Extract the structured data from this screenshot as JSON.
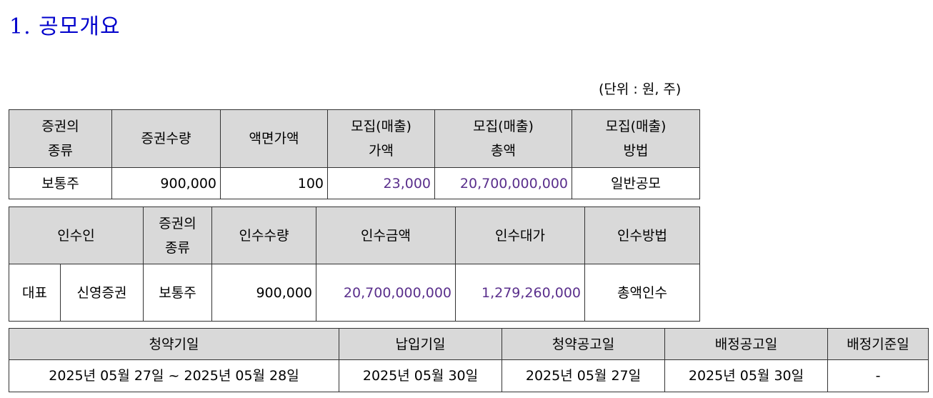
{
  "section_title": "1. 공모개요",
  "unit_note": "(단위 : 원, 주)",
  "offering": {
    "headers": [
      "증권의\n종류",
      "증권수량",
      "액면가액",
      "모집(매출)\n가액",
      "모집(매출)\n총액",
      "모집(매출)\n방법"
    ],
    "row": {
      "type": "보통주",
      "quantity": "900,000",
      "par_value": "100",
      "price": "23,000",
      "total": "20,700,000,000",
      "method": "일반공모"
    }
  },
  "underwriting": {
    "headers": [
      "인수인",
      "증권의\n종류",
      "인수수량",
      "인수금액",
      "인수대가",
      "인수방법"
    ],
    "row": {
      "role": "대표",
      "name": "신영증권",
      "type": "보통주",
      "quantity": "900,000",
      "amount": "20,700,000,000",
      "fee": "1,279,260,000",
      "method": "총액인수"
    }
  },
  "schedule": {
    "headers": [
      "청약기일",
      "납입기일",
      "청약공고일",
      "배정공고일",
      "배정기준일"
    ],
    "row": {
      "subscription": "2025년 05월 27일 ~ 2025년 05월 28일",
      "payment": "2025년 05월 30일",
      "subscription_notice": "2025년 05월 27일",
      "allocation_notice": "2025년 05월 30일",
      "allocation_base": "-"
    }
  }
}
